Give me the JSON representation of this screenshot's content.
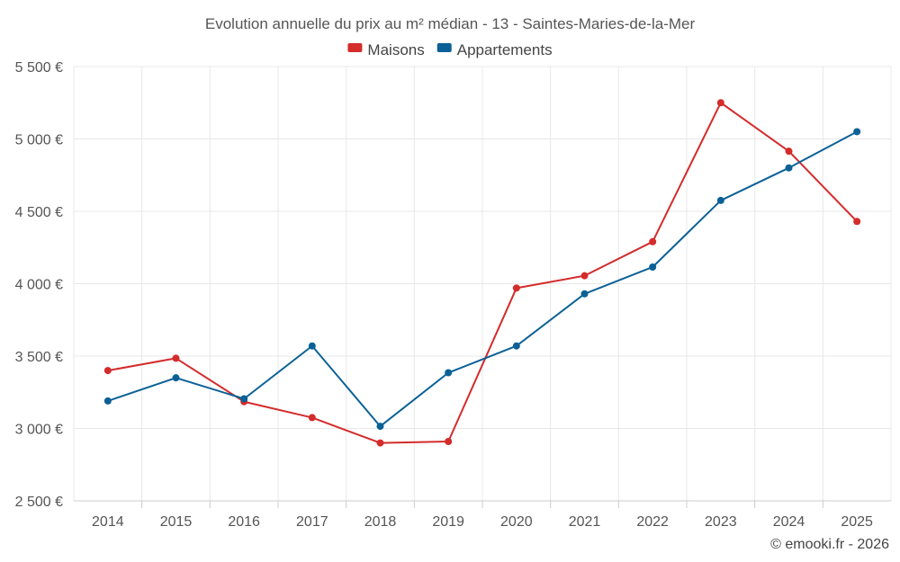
{
  "chart_data": {
    "type": "line",
    "title": "Evolution annuelle du prix au m² médian - 13 - Saintes-Maries-de-la-Mer",
    "categories": [
      "2014",
      "2015",
      "2016",
      "2017",
      "2018",
      "2019",
      "2020",
      "2021",
      "2022",
      "2023",
      "2024",
      "2025"
    ],
    "series": [
      {
        "name": "Maisons",
        "color": "#d42b2b",
        "values": [
          3400,
          3485,
          3185,
          3075,
          2900,
          2910,
          3970,
          4055,
          4290,
          5250,
          4915,
          4430
        ]
      },
      {
        "name": "Appartements",
        "color": "#0b6196",
        "values": [
          3190,
          3350,
          3205,
          3570,
          3015,
          3385,
          3570,
          3930,
          4115,
          4575,
          4800,
          5050
        ]
      }
    ],
    "ylim": [
      2500,
      5500
    ],
    "yticks": [
      2500,
      3000,
      3500,
      4000,
      4500,
      5000,
      5500
    ],
    "ytick_labels": [
      "2 500 €",
      "3 000 €",
      "3 500 €",
      "4 000 €",
      "4 500 €",
      "5 000 €",
      "5 500 €"
    ],
    "xlabel": "",
    "ylabel": "",
    "grid": true,
    "legend_position": "top-center",
    "credit": "© emooki.fr - 2026"
  }
}
